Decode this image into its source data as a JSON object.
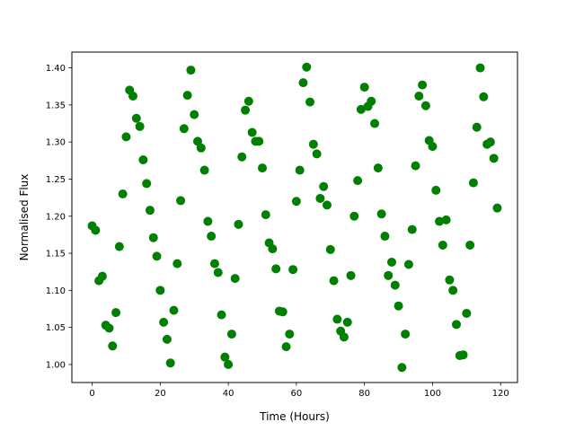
{
  "chart_data": {
    "type": "scatter",
    "title": "",
    "xlabel": "Time (Hours)",
    "ylabel": "Normalised Flux",
    "xlim": [
      -5.95,
      124.95
    ],
    "ylim": [
      0.9757,
      1.4213
    ],
    "xticks": [
      0,
      20,
      40,
      60,
      80,
      100,
      120
    ],
    "xtick_labels": [
      "0",
      "20",
      "40",
      "60",
      "80",
      "100",
      "120"
    ],
    "yticks": [
      1.0,
      1.05,
      1.1,
      1.15,
      1.2,
      1.25,
      1.3,
      1.35,
      1.4
    ],
    "ytick_labels": [
      "1.00",
      "1.05",
      "1.10",
      "1.15",
      "1.20",
      "1.25",
      "1.30",
      "1.35",
      "1.40"
    ],
    "grid": false,
    "marker_color": "#008000",
    "x": [
      0,
      1,
      2,
      3,
      4,
      5,
      6,
      7,
      8,
      9,
      10,
      11,
      12,
      13,
      14,
      15,
      16,
      17,
      18,
      19,
      20,
      21,
      22,
      23,
      24,
      25,
      26,
      27,
      28,
      29,
      30,
      31,
      32,
      33,
      34,
      35,
      36,
      37,
      38,
      39,
      40,
      41,
      42,
      43,
      44,
      45,
      46,
      47,
      48,
      49,
      50,
      51,
      52,
      53,
      54,
      55,
      56,
      57,
      58,
      59,
      60,
      61,
      62,
      63,
      64,
      65,
      66,
      67,
      68,
      69,
      70,
      71,
      72,
      73,
      74,
      75,
      76,
      77,
      78,
      79,
      80,
      81,
      82,
      83,
      84,
      85,
      86,
      87,
      88,
      89,
      90,
      91,
      92,
      93,
      94,
      95,
      96,
      97,
      98,
      99,
      100,
      101,
      102,
      103,
      104,
      105,
      106,
      107,
      108,
      109,
      110,
      111,
      112,
      113,
      114,
      115,
      116,
      117,
      118,
      119
    ],
    "y": [
      1.187,
      1.181,
      1.113,
      1.119,
      1.053,
      1.049,
      1.025,
      1.07,
      1.159,
      1.23,
      1.307,
      1.37,
      1.362,
      1.332,
      1.321,
      1.276,
      1.244,
      1.208,
      1.171,
      1.146,
      1.1,
      1.057,
      1.034,
      1.002,
      1.073,
      1.136,
      1.221,
      1.318,
      1.363,
      1.397,
      1.337,
      1.301,
      1.292,
      1.262,
      1.193,
      1.173,
      1.136,
      1.124,
      1.067,
      1.01,
      1.0,
      1.041,
      1.116,
      1.189,
      1.28,
      1.343,
      1.355,
      1.313,
      1.301,
      1.301,
      1.265,
      1.202,
      1.164,
      1.156,
      1.129,
      1.072,
      1.071,
      1.024,
      1.041,
      1.128,
      1.22,
      1.262,
      1.38,
      1.401,
      1.354,
      1.297,
      1.284,
      1.224,
      1.24,
      1.215,
      1.155,
      1.113,
      1.061,
      1.045,
      1.037,
      1.057,
      1.12,
      1.2,
      1.248,
      1.344,
      1.374,
      1.348,
      1.355,
      1.325,
      1.265,
      1.203,
      1.173,
      1.12,
      1.138,
      1.107,
      1.079,
      0.996,
      1.041,
      1.135,
      1.182,
      1.268,
      1.362,
      1.377,
      1.349,
      1.302,
      1.294,
      1.235,
      1.193,
      1.161,
      1.195,
      1.114,
      1.1,
      1.054,
      1.012,
      1.013,
      1.069,
      1.161,
      1.245,
      1.32,
      1.4,
      1.361,
      1.297,
      1.3,
      1.278,
      1.211
    ]
  }
}
